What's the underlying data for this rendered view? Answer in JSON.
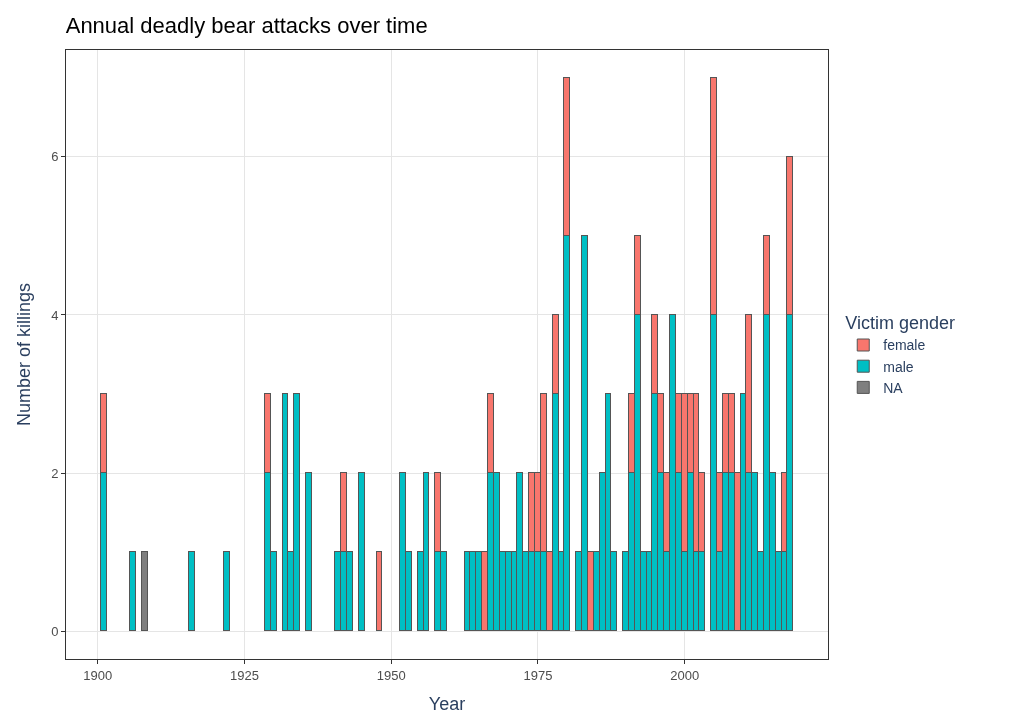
{
  "chart_data": {
    "type": "bar",
    "stacked": true,
    "title": "Annual deadly bear attacks over time",
    "xlabel": "Year",
    "ylabel": "Number of killings",
    "legend_title": "Victim gender",
    "legend": "right",
    "grid": true,
    "x": [
      1901,
      1906,
      1908,
      1916,
      1922,
      1929,
      1930,
      1932,
      1933,
      1934,
      1936,
      1941,
      1942,
      1943,
      1945,
      1948,
      1952,
      1953,
      1955,
      1956,
      1958,
      1959,
      1963,
      1964,
      1965,
      1966,
      1967,
      1968,
      1969,
      1970,
      1971,
      1972,
      1973,
      1974,
      1975,
      1976,
      1977,
      1978,
      1979,
      1980,
      1982,
      1983,
      1984,
      1985,
      1986,
      1987,
      1988,
      1990,
      1991,
      1992,
      1993,
      1994,
      1995,
      1996,
      1997,
      1998,
      1999,
      2000,
      2001,
      2002,
      2003,
      2005,
      2006,
      2007,
      2008,
      2009,
      2010,
      2011,
      2012,
      2013,
      2014,
      2015,
      2016,
      2017,
      2018
    ],
    "series": [
      {
        "name": "NA",
        "color": "#7f7f7f",
        "values": [
          null,
          null,
          1,
          null,
          null,
          null,
          null,
          null,
          null,
          null,
          null,
          null,
          null,
          null,
          null,
          null,
          null,
          null,
          null,
          null,
          null,
          null,
          null,
          null,
          null,
          null,
          null,
          null,
          null,
          null,
          null,
          null,
          null,
          null,
          null,
          null,
          null,
          null,
          null,
          null,
          null,
          null,
          null,
          null,
          null,
          null,
          null,
          null,
          null,
          null,
          null,
          null,
          null,
          null,
          null,
          null,
          null,
          null,
          null,
          null,
          null,
          null,
          null,
          null,
          null,
          null,
          null,
          null,
          null,
          null,
          null,
          null,
          null,
          null,
          null
        ]
      },
      {
        "name": "male",
        "color": "#00bfc4",
        "values": [
          2,
          1,
          null,
          1,
          1,
          2,
          1,
          3,
          1,
          3,
          2,
          1,
          1,
          1,
          2,
          null,
          2,
          1,
          1,
          2,
          1,
          1,
          1,
          1,
          1,
          null,
          2,
          2,
          1,
          1,
          1,
          2,
          1,
          1,
          1,
          1,
          null,
          3,
          1,
          5,
          1,
          5,
          null,
          1,
          2,
          3,
          1,
          1,
          2,
          4,
          1,
          1,
          3,
          2,
          1,
          4,
          2,
          1,
          2,
          1,
          1,
          4,
          1,
          2,
          2,
          null,
          3,
          2,
          2,
          1,
          4,
          2,
          1,
          1,
          4
        ]
      },
      {
        "name": "female",
        "color": "#f8766d",
        "values": [
          1,
          null,
          null,
          null,
          null,
          1,
          null,
          null,
          null,
          null,
          null,
          null,
          1,
          null,
          null,
          1,
          null,
          null,
          null,
          null,
          1,
          null,
          null,
          null,
          null,
          1,
          1,
          null,
          null,
          null,
          null,
          null,
          null,
          1,
          1,
          2,
          1,
          1,
          null,
          2,
          null,
          null,
          1,
          null,
          null,
          null,
          null,
          null,
          1,
          1,
          null,
          null,
          1,
          1,
          1,
          null,
          1,
          2,
          1,
          2,
          1,
          3,
          1,
          1,
          1,
          2,
          null,
          2,
          null,
          null,
          1,
          null,
          null,
          1,
          2
        ]
      }
    ],
    "xlim": [
      1894.6,
      2024.4
    ],
    "xticks": [
      1900,
      1925,
      1950,
      1975,
      2000
    ],
    "ylim": [
      -0.35,
      7.35
    ],
    "yticks": [
      0,
      2,
      4,
      6
    ]
  }
}
